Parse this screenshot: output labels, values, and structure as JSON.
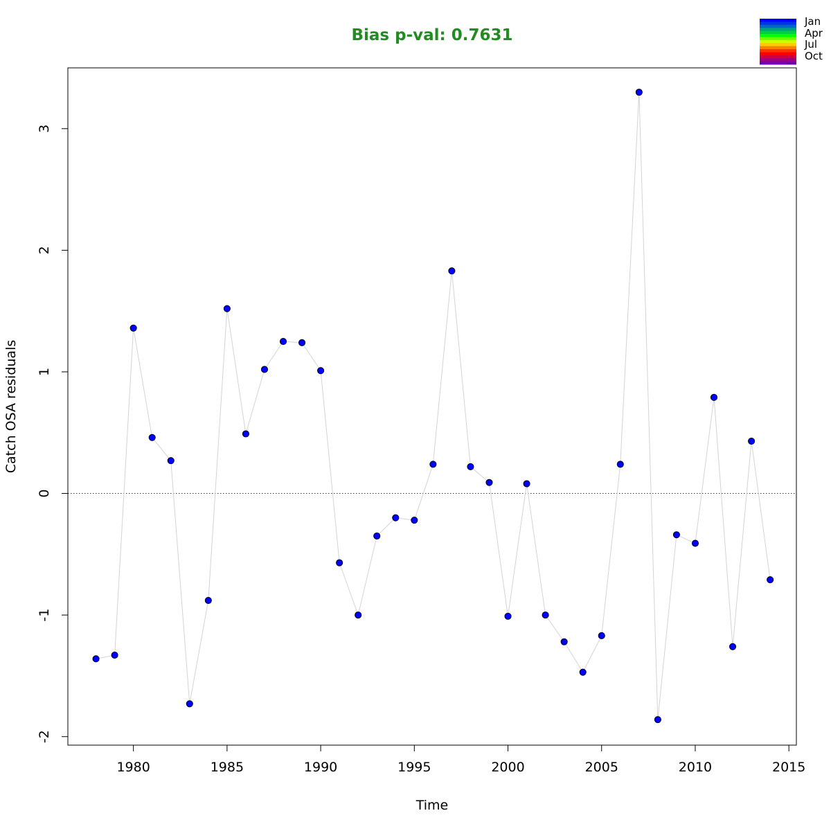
{
  "chart_data": {
    "type": "line",
    "title": "Bias p-val: 0.7631",
    "title_color": "#228B22",
    "xlabel": "Time",
    "ylabel": "Catch OSA residuals",
    "xlim": [
      1976.5,
      2015.4
    ],
    "ylim": [
      -2.07,
      3.5
    ],
    "x_ticks": [
      1980,
      1985,
      1990,
      1995,
      2000,
      2005,
      2010,
      2015
    ],
    "y_ticks": [
      -2,
      -1,
      0,
      1,
      2,
      3
    ],
    "reference_line": {
      "y": 0,
      "style": "dotted"
    },
    "grid": false,
    "legend_position": "top-right",
    "legend": {
      "labels": [
        "Jan",
        "Apr",
        "Jul",
        "Oct"
      ],
      "colors": [
        "#0000FF",
        "#0033E6",
        "#0066CC",
        "#00A080",
        "#00D040",
        "#00FF00",
        "#66FF00",
        "#CCFF00",
        "#FFCC00",
        "#FF8000",
        "#FF3300",
        "#FF0000",
        "#D00040",
        "#A00080",
        "#7000B0"
      ]
    },
    "series": [
      {
        "point_color": "#0000FF",
        "line_color": "#D3D3D3",
        "x": [
          1978,
          1979,
          1980,
          1981,
          1982,
          1983,
          1984,
          1985,
          1986,
          1987,
          1988,
          1989,
          1990,
          1991,
          1992,
          1993,
          1994,
          1995,
          1996,
          1997,
          1998,
          1999,
          2000,
          2001,
          2002,
          2003,
          2004,
          2005,
          2006,
          2007,
          2008,
          2009,
          2010,
          2011,
          2012,
          2013,
          2014
        ],
        "y": [
          -1.36,
          -1.33,
          1.36,
          0.46,
          0.27,
          -1.73,
          -0.88,
          1.52,
          0.49,
          1.02,
          1.25,
          1.24,
          1.01,
          -0.57,
          -1.0,
          -0.35,
          -0.2,
          -0.22,
          0.24,
          1.83,
          0.22,
          0.09,
          -1.01,
          0.08,
          -1.0,
          -1.22,
          -1.47,
          -1.17,
          0.24,
          3.3,
          -1.86,
          -0.34,
          -0.41,
          0.79,
          -1.26,
          0.43,
          -0.71
        ]
      }
    ]
  }
}
